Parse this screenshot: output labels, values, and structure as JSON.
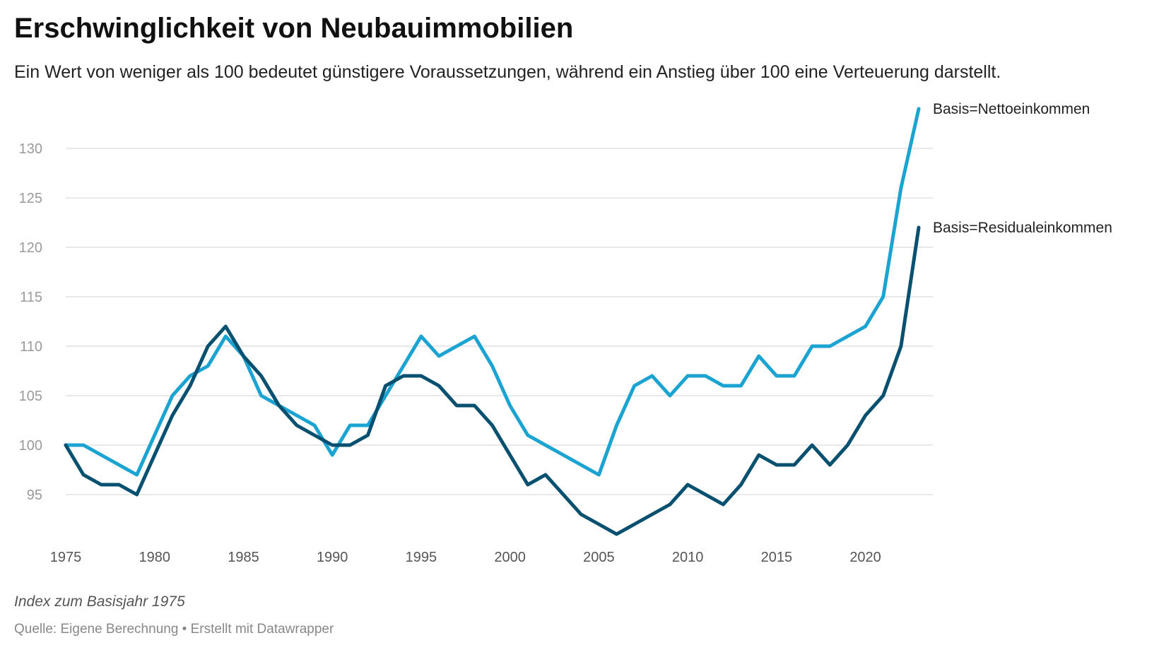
{
  "header": {
    "title": "Erschwinglichkeit von Neubauimmobilien",
    "subtitle": "Ein Wert von weniger als 100 bedeutet günstigere Voraussetzungen, während ein Anstieg über 100 eine Verteuerung darstellt."
  },
  "footer": {
    "note": "Index zum Basisjahr 1975",
    "source": "Quelle: Eigene Berechnung • Erstellt mit Datawrapper"
  },
  "chart_data": {
    "type": "line",
    "title": "Erschwinglichkeit von Neubauimmobilien",
    "xlabel": "",
    "ylabel": "",
    "xlim": [
      1975,
      2023
    ],
    "ylim": [
      90,
      135
    ],
    "x_ticks": [
      1975,
      1980,
      1985,
      1990,
      1995,
      2000,
      2005,
      2010,
      2015,
      2020
    ],
    "y_ticks": [
      95,
      100,
      105,
      110,
      115,
      120,
      125,
      130
    ],
    "grid": true,
    "legend": "direct labels at line ends",
    "x": [
      1975,
      1976,
      1977,
      1978,
      1979,
      1980,
      1981,
      1982,
      1983,
      1984,
      1985,
      1986,
      1987,
      1988,
      1989,
      1990,
      1991,
      1992,
      1993,
      1994,
      1995,
      1996,
      1997,
      1998,
      1999,
      2000,
      2001,
      2002,
      2003,
      2004,
      2005,
      2006,
      2007,
      2008,
      2009,
      2010,
      2011,
      2012,
      2013,
      2014,
      2015,
      2016,
      2017,
      2018,
      2019,
      2020,
      2021,
      2022,
      2023
    ],
    "series": [
      {
        "name": "Basis=Nettoeinkommen",
        "color": "#1ba3d1",
        "values": [
          100,
          100,
          99,
          98,
          97,
          101,
          105,
          107,
          108,
          111,
          109,
          105,
          104,
          103,
          102,
          99,
          102,
          102,
          105,
          108,
          111,
          109,
          110,
          111,
          108,
          104,
          101,
          100,
          99,
          98,
          97,
          102,
          106,
          107,
          105,
          107,
          107,
          106,
          106,
          109,
          107,
          107,
          110,
          110,
          111,
          112,
          115,
          126,
          134
        ]
      },
      {
        "name": "Basis=Residualeinkommen",
        "color": "#08506f",
        "values": [
          100,
          97,
          96,
          96,
          95,
          99,
          103,
          106,
          110,
          112,
          109,
          107,
          104,
          102,
          101,
          100,
          100,
          101,
          106,
          107,
          107,
          106,
          104,
          104,
          102,
          99,
          96,
          97,
          95,
          93,
          92,
          91,
          92,
          93,
          94,
          96,
          95,
          94,
          96,
          99,
          98,
          98,
          100,
          98,
          100,
          103,
          105,
          110,
          122
        ]
      }
    ]
  }
}
